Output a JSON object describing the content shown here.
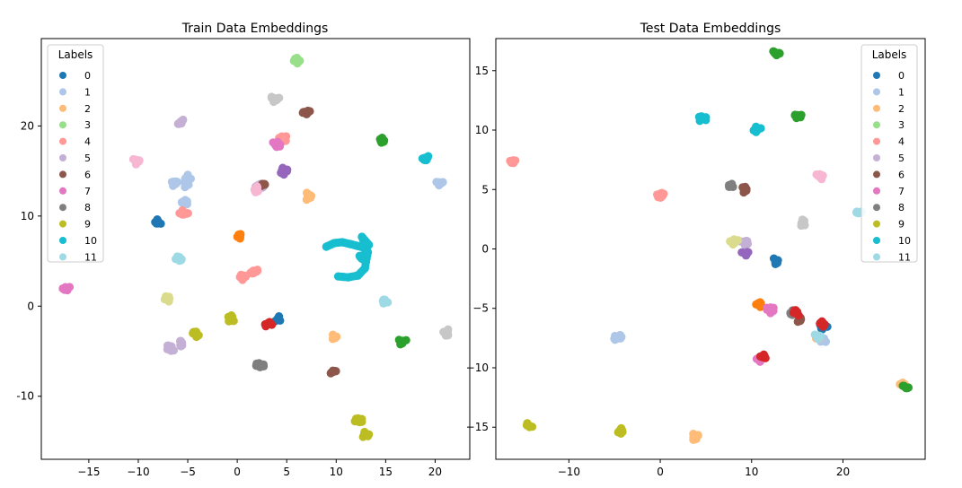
{
  "figure": {
    "background": "#ffffff",
    "panel_titles": [
      "Train Data Embeddings",
      "Test Data Embeddings"
    ]
  },
  "legend": {
    "title": "Labels",
    "labels": [
      "0",
      "1",
      "2",
      "3",
      "4",
      "5",
      "6",
      "7",
      "8",
      "9",
      "10",
      "11"
    ],
    "colors": [
      "#1f77b4",
      "#aec7e8",
      "#ffbb78",
      "#98df8a",
      "#ff9896",
      "#c5b0d5",
      "#8c564b",
      "#e377c2",
      "#7f7f7f",
      "#bcbd22",
      "#17becf",
      "#9edae5"
    ]
  },
  "chart_data": [
    {
      "type": "scatter",
      "title": "Train Data Embeddings",
      "xlabel": "",
      "ylabel": "",
      "xlim": [
        -19.8,
        23.5
      ],
      "ylim": [
        -17,
        29.7
      ],
      "xticks": [
        -15,
        -10,
        -5,
        0,
        5,
        10,
        15,
        20
      ],
      "yticks": [
        20,
        10,
        0,
        -10
      ],
      "xtick_labels": [
        "−15",
        "−10",
        "−5",
        "0",
        "5",
        "10",
        "15",
        "20"
      ],
      "ytick_labels": [
        "20",
        "10",
        "0",
        "-10"
      ],
      "grid": false,
      "legend_position": "top-left",
      "clusters": [
        {
          "x": -8.0,
          "y": 9.3,
          "color": "#1f77b4",
          "label": "0"
        },
        {
          "x": 4.1,
          "y": -1.4,
          "color": "#1f77b4",
          "label": "0"
        },
        {
          "x": -5.0,
          "y": 14.2,
          "color": "#aec7e8",
          "label": "1"
        },
        {
          "x": -5.2,
          "y": 13.6,
          "color": "#aec7e8",
          "label": "1"
        },
        {
          "x": -6.3,
          "y": 13.7,
          "color": "#aec7e8",
          "label": "1"
        },
        {
          "x": -5.3,
          "y": 11.5,
          "color": "#aec7e8",
          "label": "1"
        },
        {
          "x": 20.5,
          "y": 13.6,
          "color": "#aec7e8",
          "label": "1"
        },
        {
          "x": 0.3,
          "y": 7.7,
          "color": "#ff7f0e",
          "label": "orange"
        },
        {
          "x": 7.1,
          "y": 12.2,
          "color": "#ffbb78",
          "label": "2"
        },
        {
          "x": 9.8,
          "y": -3.4,
          "color": "#ffbb78",
          "label": "2"
        },
        {
          "x": 6.0,
          "y": 27.2,
          "color": "#98df8a",
          "label": "3"
        },
        {
          "x": -5.4,
          "y": 10.3,
          "color": "#ff9896",
          "label": "4"
        },
        {
          "x": 0.6,
          "y": 3.3,
          "color": "#ff9896",
          "label": "4"
        },
        {
          "x": 1.8,
          "y": 3.8,
          "color": "#ff9896",
          "label": "4"
        },
        {
          "x": 4.6,
          "y": 18.6,
          "color": "#ff9896",
          "label": "4"
        },
        {
          "x": -5.7,
          "y": 20.4,
          "color": "#c5b0d5",
          "label": "5"
        },
        {
          "x": -6.8,
          "y": -4.7,
          "color": "#c5b0d5",
          "label": "5"
        },
        {
          "x": -5.6,
          "y": -4.2,
          "color": "#c5b0d5",
          "label": "5"
        },
        {
          "x": 2.3,
          "y": 13.2,
          "color": "#c5b0d5",
          "label": "5"
        },
        {
          "x": 7.0,
          "y": 21.4,
          "color": "#8c564b",
          "label": "6"
        },
        {
          "x": 9.6,
          "y": -7.3,
          "color": "#8c564b",
          "label": "6"
        },
        {
          "x": 2.7,
          "y": 13.5,
          "color": "#8c564b",
          "label": "6"
        },
        {
          "x": -10.2,
          "y": 16.1,
          "color": "#f7b6d2",
          "label": "pink"
        },
        {
          "x": 2.0,
          "y": 13.0,
          "color": "#f7b6d2",
          "label": "pink"
        },
        {
          "x": -17.2,
          "y": 1.9,
          "color": "#e377c2",
          "label": "7"
        },
        {
          "x": 3.9,
          "y": 17.9,
          "color": "#e377c2",
          "label": "7"
        },
        {
          "x": 4.8,
          "y": 15.0,
          "color": "#9467bd",
          "label": "purple"
        },
        {
          "x": 2.3,
          "y": -6.5,
          "color": "#7f7f7f",
          "label": "8"
        },
        {
          "x": 3.8,
          "y": 23.0,
          "color": "#c7c7c7",
          "label": "lightgray"
        },
        {
          "x": 21.2,
          "y": -2.9,
          "color": "#c7c7c7",
          "label": "lightgray"
        },
        {
          "x": -7.0,
          "y": 0.8,
          "color": "#dbdb8d",
          "label": "lightolive"
        },
        {
          "x": -4.2,
          "y": -3.2,
          "color": "#bcbd22",
          "label": "9"
        },
        {
          "x": -0.6,
          "y": -1.4,
          "color": "#bcbd22",
          "label": "9"
        },
        {
          "x": 12.9,
          "y": -14.3,
          "color": "#bcbd22",
          "label": "9"
        },
        {
          "x": 12.3,
          "y": -12.7,
          "color": "#bcbd22",
          "label": "9"
        },
        {
          "x": 3.2,
          "y": -2.0,
          "color": "#d62728",
          "label": "red"
        },
        {
          "x": 12.7,
          "y": 5.4,
          "color": "#17becf",
          "label": "10"
        },
        {
          "x": 19.1,
          "y": 16.4,
          "color": "#17becf",
          "label": "10"
        },
        {
          "x": -6.0,
          "y": 5.3,
          "color": "#9edae5",
          "label": "11"
        },
        {
          "x": 15.1,
          "y": 0.5,
          "color": "#9edae5",
          "label": "11"
        },
        {
          "x": 14.6,
          "y": 18.3,
          "color": "#2ca02c",
          "label": "green"
        },
        {
          "x": 16.7,
          "y": -3.9,
          "color": "#2ca02c",
          "label": "green"
        }
      ],
      "curve_10": [
        [
          9.0,
          6.6
        ],
        [
          9.8,
          7.0
        ],
        [
          10.6,
          7.1
        ],
        [
          11.4,
          6.9
        ],
        [
          12.1,
          6.7
        ],
        [
          12.8,
          6.5
        ],
        [
          13.3,
          6.8
        ],
        [
          12.6,
          7.7
        ],
        [
          13.2,
          6.0
        ],
        [
          12.9,
          4.2
        ],
        [
          12.2,
          3.4
        ],
        [
          11.2,
          3.2
        ],
        [
          10.2,
          3.3
        ]
      ]
    },
    {
      "type": "scatter",
      "title": "Test Data Embeddings",
      "xlabel": "",
      "ylabel": "",
      "xlim": [
        -18,
        29
      ],
      "ylim": [
        -17.7,
        17.7
      ],
      "xticks": [
        -10,
        0,
        10,
        20
      ],
      "yticks": [
        15,
        10,
        5,
        0,
        -5,
        -10,
        -15
      ],
      "xtick_labels": [
        "−10",
        "0",
        "10",
        "20"
      ],
      "ytick_labels": [
        "15",
        "10",
        "5",
        "0",
        "−5",
        "−10",
        "−15"
      ],
      "grid": false,
      "legend_position": "top-right",
      "clusters": [
        {
          "x": 12.6,
          "y": -1.0,
          "color": "#1f77b4",
          "label": "0"
        },
        {
          "x": 17.9,
          "y": -6.5,
          "color": "#1f77b4",
          "label": "0"
        },
        {
          "x": -4.6,
          "y": -7.5,
          "color": "#aec7e8",
          "label": "1"
        },
        {
          "x": 17.8,
          "y": -7.6,
          "color": "#aec7e8",
          "label": "1"
        },
        {
          "x": 0.0,
          "y": 4.6,
          "color": "#ff9896",
          "label": "4"
        },
        {
          "x": -16.0,
          "y": 7.4,
          "color": "#ff9896",
          "label": "4"
        },
        {
          "x": 3.8,
          "y": -15.8,
          "color": "#ffbb78",
          "label": "2"
        },
        {
          "x": 26.5,
          "y": -11.5,
          "color": "#ffbb78",
          "label": "2"
        },
        {
          "x": 17.5,
          "y": -7.5,
          "color": "#ffbb78",
          "label": "2"
        },
        {
          "x": 12.6,
          "y": 16.5,
          "color": "#2ca02c",
          "label": "green"
        },
        {
          "x": 15.0,
          "y": 11.2,
          "color": "#2ca02c",
          "label": "green"
        },
        {
          "x": 4.6,
          "y": 11.0,
          "color": "#17becf",
          "label": "10"
        },
        {
          "x": 10.6,
          "y": 10.0,
          "color": "#17becf",
          "label": "10"
        },
        {
          "x": 21.7,
          "y": 3.0,
          "color": "#9edae5",
          "label": "11"
        },
        {
          "x": 17.3,
          "y": -7.3,
          "color": "#9edae5",
          "label": "11"
        },
        {
          "x": 7.7,
          "y": 5.4,
          "color": "#7f7f7f",
          "label": "8"
        },
        {
          "x": 14.5,
          "y": -5.4,
          "color": "#7f7f7f",
          "label": "8"
        },
        {
          "x": 9.4,
          "y": 5.0,
          "color": "#8c564b",
          "label": "6"
        },
        {
          "x": 15.3,
          "y": -6.0,
          "color": "#8c564b",
          "label": "6"
        },
        {
          "x": 9.2,
          "y": 0.6,
          "color": "#c5b0d5",
          "label": "5"
        },
        {
          "x": 9.3,
          "y": -0.4,
          "color": "#9467bd",
          "label": "purple"
        },
        {
          "x": 8.1,
          "y": 0.6,
          "color": "#dbdb8d",
          "label": "lightolive"
        },
        {
          "x": 17.5,
          "y": 6.1,
          "color": "#f7b6d2",
          "label": "pink"
        },
        {
          "x": 15.5,
          "y": 2.2,
          "color": "#c7c7c7",
          "label": "lightgray"
        },
        {
          "x": 10.8,
          "y": -4.7,
          "color": "#ff7f0e",
          "label": "orange"
        },
        {
          "x": 12.0,
          "y": -5.1,
          "color": "#e377c2",
          "label": "7"
        },
        {
          "x": 11.0,
          "y": -9.3,
          "color": "#e377c2",
          "label": "7"
        },
        {
          "x": 11.2,
          "y": -9.1,
          "color": "#d62728",
          "label": "red"
        },
        {
          "x": 14.8,
          "y": -5.4,
          "color": "#d62728",
          "label": "red"
        },
        {
          "x": 17.9,
          "y": -6.3,
          "color": "#d62728",
          "label": "red"
        },
        {
          "x": -14.3,
          "y": -14.9,
          "color": "#bcbd22",
          "label": "9"
        },
        {
          "x": -4.3,
          "y": -15.3,
          "color": "#bcbd22",
          "label": "9"
        },
        {
          "x": 26.9,
          "y": -11.7,
          "color": "#2ca02c",
          "label": "green"
        }
      ]
    }
  ]
}
